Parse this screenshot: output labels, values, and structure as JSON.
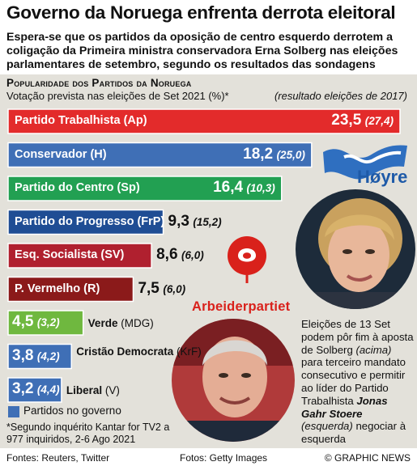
{
  "header": {
    "title": "Governo da Noruega enfrenta derrota eleitoral",
    "subtitle": "Espera-se que os partidos da oposição de centro esquerdo derrotem a coligação da Primeira ministra conservadora Erna Solberg nas eleições parlamentares de setembro, segundo os resultados das sondagens"
  },
  "chart_data": {
    "type": "bar",
    "orientation": "horizontal",
    "title": "Popularidade dos Partidos da Noruega",
    "subtitle": "Votação prevista nas eleições de Set 2021 (%)*",
    "previous_label": "(resultado eleições de 2017)",
    "series": [
      {
        "name": "Votação prevista 2021",
        "values": [
          23.5,
          18.2,
          16.4,
          9.3,
          8.6,
          7.5,
          4.5,
          3.8,
          3.2
        ]
      },
      {
        "name": "Resultado 2017",
        "values": [
          27.4,
          25.0,
          10.3,
          15.2,
          6.0,
          6.0,
          3.2,
          4.2,
          4.4
        ]
      }
    ],
    "bars": [
      {
        "label": "Partido Trabalhista (Ap)",
        "value": 23.5,
        "value_text": "23,5",
        "prev_text": "(27,4)",
        "color": "#e32b2b",
        "government": false
      },
      {
        "label": "Conservador (H)",
        "value": 18.2,
        "value_text": "18,2",
        "prev_text": "(25,0)",
        "color": "#3f6fb6",
        "government": true
      },
      {
        "label": "Partido do Centro (Sp)",
        "value": 16.4,
        "value_text": "16,4",
        "prev_text": "(10,3)",
        "color": "#22a052",
        "government": false
      },
      {
        "label": "Partido do Progresso (FrP)",
        "value": 9.3,
        "value_text": "9,3",
        "prev_text": "(15,2)",
        "color": "#1f4d94",
        "government": false
      },
      {
        "label": "Esq. Socialista (SV)",
        "value": 8.6,
        "value_text": "8,6",
        "prev_text": "(6,0)",
        "color": "#b0202f",
        "government": false
      },
      {
        "label": "P. Vermelho (R)",
        "value": 7.5,
        "value_text": "7,5",
        "prev_text": "(6,0)",
        "color": "#8b1a1a",
        "government": false
      },
      {
        "label": "Verde",
        "abbr": "(MDG)",
        "value": 4.5,
        "value_text": "4,5",
        "prev_text": "(3,2)",
        "color": "#6fb83f",
        "government": false
      },
      {
        "label": "Cristão Democrata",
        "abbr": "(KrF)",
        "value": 3.8,
        "value_text": "3,8",
        "prev_text": "(4,2)",
        "color": "#3f6fb6",
        "government": true
      },
      {
        "label": "Liberal",
        "abbr": "(V)",
        "value": 3.2,
        "value_text": "3,2",
        "prev_text": "(4,4)",
        "color": "#3f6fb6",
        "government": true
      }
    ],
    "legend": {
      "label": "Partidos no governo",
      "color": "#3f6fb6"
    },
    "footnote": "*Segundo inquérito Kantar for TV2 a 977 inquiridos, 2-6 Ago 2021"
  },
  "logos": {
    "hoyre": "Høyre",
    "arbeiderpartiet": "Arbeiderpartiet",
    "watermark": "GRAPHIC NEWS"
  },
  "caption": {
    "p1": "Eleições de 13 Set podem pôr fim à aposta de Solberg ",
    "i1": "(acima)",
    "p2": " para terceiro mandato consecutivo e permitir ao líder do Partido Trabalhista ",
    "name": "Jonas Gahr Stoere",
    "i2": "(esquerda)",
    "p3": " negociar à esquerda"
  },
  "footer": {
    "sources": "Fontes: Reuters, Twitter",
    "photos": "Fotos: Getty Images",
    "copyright": "© GRAPHIC NEWS"
  }
}
